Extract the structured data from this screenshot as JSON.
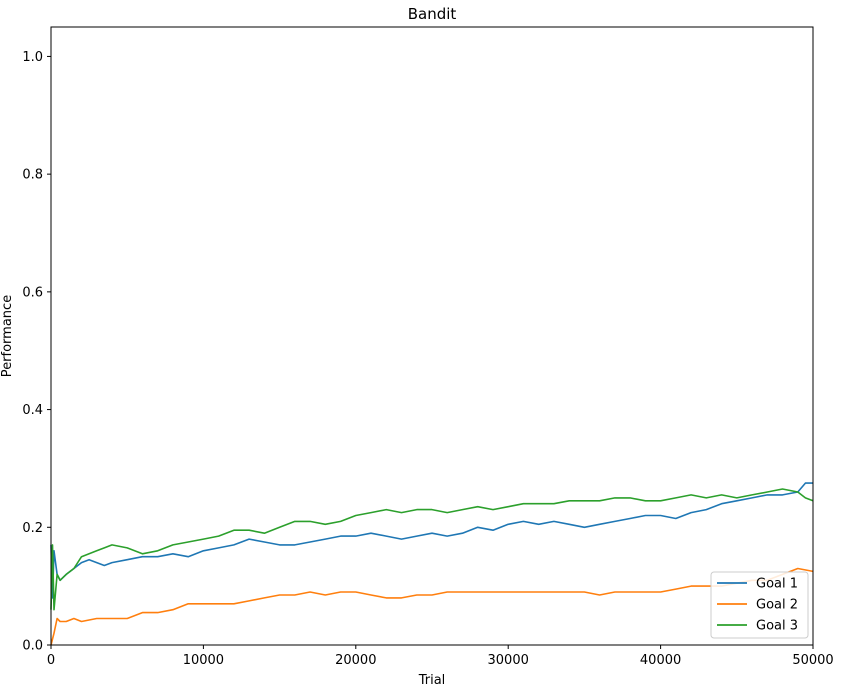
{
  "chart_data": {
    "type": "line",
    "title": "Bandit",
    "xlabel": "Trial",
    "ylabel": "Performance",
    "xlim": [
      0,
      50000
    ],
    "ylim": [
      0,
      1.05
    ],
    "xticks": [
      0,
      10000,
      20000,
      30000,
      40000,
      50000
    ],
    "xtick_labels": [
      "0",
      "10000",
      "20000",
      "30000",
      "40000",
      "50000"
    ],
    "yticks": [
      0.0,
      0.2,
      0.4,
      0.6,
      0.8,
      1.0
    ],
    "ytick_labels": [
      "0.0",
      "0.2",
      "0.4",
      "0.6",
      "0.8",
      "1.0"
    ],
    "grid": false,
    "legend_position": "lower-right",
    "series": [
      {
        "name": "Goal 1",
        "color": "#1f77b4",
        "x": [
          0,
          100,
          200,
          400,
          600,
          800,
          1000,
          1500,
          2000,
          2500,
          3000,
          3500,
          4000,
          5000,
          6000,
          7000,
          8000,
          9000,
          10000,
          11000,
          12000,
          13000,
          14000,
          15000,
          16000,
          17000,
          18000,
          19000,
          20000,
          21000,
          22000,
          23000,
          24000,
          25000,
          26000,
          27000,
          28000,
          29000,
          30000,
          31000,
          32000,
          33000,
          34000,
          35000,
          36000,
          37000,
          38000,
          39000,
          40000,
          41000,
          42000,
          43000,
          44000,
          45000,
          46000,
          47000,
          48000,
          49000,
          49500,
          50000
        ],
        "y": [
          0.17,
          0.08,
          0.16,
          0.12,
          0.11,
          0.115,
          0.12,
          0.13,
          0.14,
          0.145,
          0.14,
          0.135,
          0.14,
          0.145,
          0.15,
          0.15,
          0.155,
          0.15,
          0.16,
          0.165,
          0.17,
          0.18,
          0.175,
          0.17,
          0.17,
          0.175,
          0.18,
          0.185,
          0.185,
          0.19,
          0.185,
          0.18,
          0.185,
          0.19,
          0.185,
          0.19,
          0.2,
          0.195,
          0.205,
          0.21,
          0.205,
          0.21,
          0.205,
          0.2,
          0.205,
          0.21,
          0.215,
          0.22,
          0.22,
          0.215,
          0.225,
          0.23,
          0.24,
          0.245,
          0.25,
          0.255,
          0.255,
          0.26,
          0.275,
          0.275
        ]
      },
      {
        "name": "Goal 2",
        "color": "#ff7f0e",
        "x": [
          0,
          200,
          400,
          600,
          1000,
          1500,
          2000,
          3000,
          4000,
          5000,
          6000,
          7000,
          8000,
          9000,
          10000,
          11000,
          12000,
          13000,
          14000,
          15000,
          16000,
          17000,
          18000,
          19000,
          20000,
          21000,
          22000,
          23000,
          24000,
          25000,
          26000,
          27000,
          28000,
          29000,
          30000,
          31000,
          32000,
          33000,
          34000,
          35000,
          36000,
          37000,
          38000,
          39000,
          40000,
          41000,
          42000,
          43000,
          44000,
          45000,
          46000,
          47000,
          48000,
          49000,
          50000
        ],
        "y": [
          0.0,
          0.02,
          0.045,
          0.04,
          0.04,
          0.045,
          0.04,
          0.045,
          0.045,
          0.045,
          0.055,
          0.055,
          0.06,
          0.07,
          0.07,
          0.07,
          0.07,
          0.075,
          0.08,
          0.085,
          0.085,
          0.09,
          0.085,
          0.09,
          0.09,
          0.085,
          0.08,
          0.08,
          0.085,
          0.085,
          0.09,
          0.09,
          0.09,
          0.09,
          0.09,
          0.09,
          0.09,
          0.09,
          0.09,
          0.09,
          0.085,
          0.09,
          0.09,
          0.09,
          0.09,
          0.095,
          0.1,
          0.1,
          0.1,
          0.105,
          0.11,
          0.11,
          0.12,
          0.13,
          0.125
        ]
      },
      {
        "name": "Goal 3",
        "color": "#2ca02c",
        "x": [
          0,
          100,
          200,
          400,
          600,
          800,
          1000,
          1500,
          2000,
          2500,
          3000,
          3500,
          4000,
          5000,
          6000,
          7000,
          8000,
          9000,
          10000,
          11000,
          12000,
          13000,
          14000,
          15000,
          16000,
          17000,
          18000,
          19000,
          20000,
          21000,
          22000,
          23000,
          24000,
          25000,
          26000,
          27000,
          28000,
          29000,
          30000,
          31000,
          32000,
          33000,
          34000,
          35000,
          36000,
          37000,
          38000,
          39000,
          40000,
          41000,
          42000,
          43000,
          44000,
          45000,
          46000,
          47000,
          48000,
          49000,
          49500,
          50000
        ],
        "y": [
          0.06,
          0.17,
          0.06,
          0.12,
          0.11,
          0.115,
          0.12,
          0.13,
          0.15,
          0.155,
          0.16,
          0.165,
          0.17,
          0.165,
          0.155,
          0.16,
          0.17,
          0.175,
          0.18,
          0.185,
          0.195,
          0.195,
          0.19,
          0.2,
          0.21,
          0.21,
          0.205,
          0.21,
          0.22,
          0.225,
          0.23,
          0.225,
          0.23,
          0.23,
          0.225,
          0.23,
          0.235,
          0.23,
          0.235,
          0.24,
          0.24,
          0.24,
          0.245,
          0.245,
          0.245,
          0.25,
          0.25,
          0.245,
          0.245,
          0.25,
          0.255,
          0.25,
          0.255,
          0.25,
          0.255,
          0.26,
          0.265,
          0.26,
          0.25,
          0.245
        ]
      }
    ]
  }
}
